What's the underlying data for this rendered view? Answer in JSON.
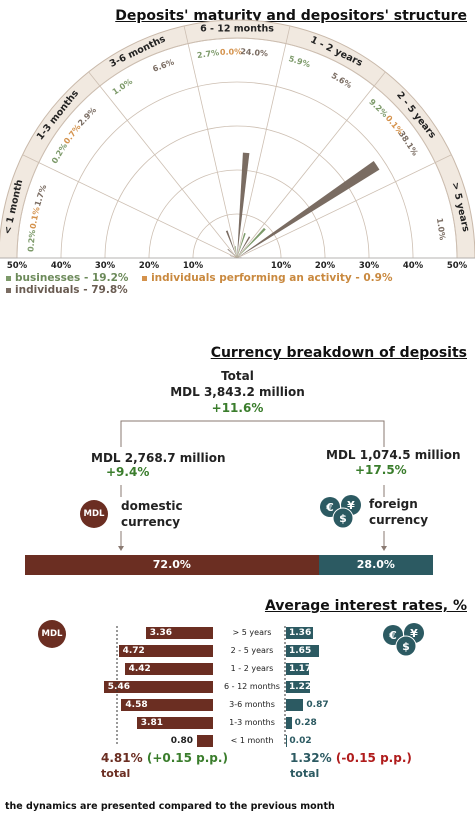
{
  "titles": {
    "maturity": "Deposits' maturity and depositors' structure",
    "currency": "Currency breakdown of deposits",
    "rates": "Average interest rates, %"
  },
  "chart_data": [
    {
      "type": "polar-bar",
      "title": "Deposits' maturity and depositors' structure",
      "categories": [
        "< 1 month",
        "1-3 months",
        "3-6 months",
        "6 - 12 months",
        "1 - 2 years",
        "2 - 5 years",
        "> 5 years"
      ],
      "series": [
        {
          "name": "businesses - 19.2%",
          "color": "#7d9a6a",
          "values": [
            0.2,
            0.2,
            1.0,
            2.7,
            5.9,
            9.2,
            null
          ]
        },
        {
          "name": "individuals performing an activity - 0.9%",
          "color": "#d4924c",
          "values": [
            0.1,
            0.7,
            null,
            0.0,
            null,
            0.1,
            null
          ]
        },
        {
          "name": "individuals - 79.8%",
          "color": "#7a6c62",
          "values": [
            1.7,
            2.9,
            6.6,
            24.0,
            5.6,
            38.1,
            1.0
          ]
        }
      ],
      "axis_ticks": [
        "50%",
        "40%",
        "30%",
        "20%",
        "10%",
        "10%",
        "20%",
        "30%",
        "40%",
        "50%"
      ],
      "rmax": 50
    },
    {
      "type": "bar",
      "title": "Currency breakdown of deposits",
      "total": {
        "label": "Total",
        "amount": "MDL 3,843.2 million",
        "change": "+11.6%"
      },
      "categories": [
        "domestic currency",
        "foreign currency"
      ],
      "amounts": [
        "MDL 2,768.7 million",
        "MDL 1,074.5 million"
      ],
      "changes": [
        "+9.4%",
        "+17.5%"
      ],
      "share_labels": [
        "72.0%",
        "28.0%"
      ],
      "values": [
        72.0,
        28.0
      ],
      "colors": [
        "#6b2e22",
        "#2c5a62"
      ]
    },
    {
      "type": "bar",
      "orientation": "horizontal",
      "title": "Average interest rates, %",
      "categories": [
        "> 5 years",
        "2 - 5 years",
        "1 - 2 years",
        "6 - 12 months",
        "3-6 months",
        "1-3 months",
        "< 1 month"
      ],
      "series": [
        {
          "name": "MDL",
          "color": "#6b2e22",
          "values": [
            3.36,
            4.72,
            4.42,
            5.46,
            4.58,
            3.81,
            0.8
          ],
          "total": "4.81%",
          "change": "(+0.15 p.p.)"
        },
        {
          "name": "foreign",
          "color": "#2c5a62",
          "values": [
            1.36,
            1.65,
            1.17,
            1.22,
            0.87,
            0.28,
            0.02
          ],
          "total": "1.32%",
          "change": "(-0.15 p.p.)"
        }
      ],
      "value_labels_mdl": [
        "3.36",
        "4.72",
        "4.42",
        "5.46",
        "4.58",
        "3.81",
        "0.80"
      ],
      "value_labels_fx": [
        "1.36",
        "1.65",
        "1.17",
        "1.22",
        "0.87",
        "0.28",
        "0.02"
      ],
      "xmax": 6
    }
  ],
  "labels": {
    "mdl_badge": "MDL",
    "total_word": "total",
    "note": "the dynamics are presented compared to the previous month"
  }
}
